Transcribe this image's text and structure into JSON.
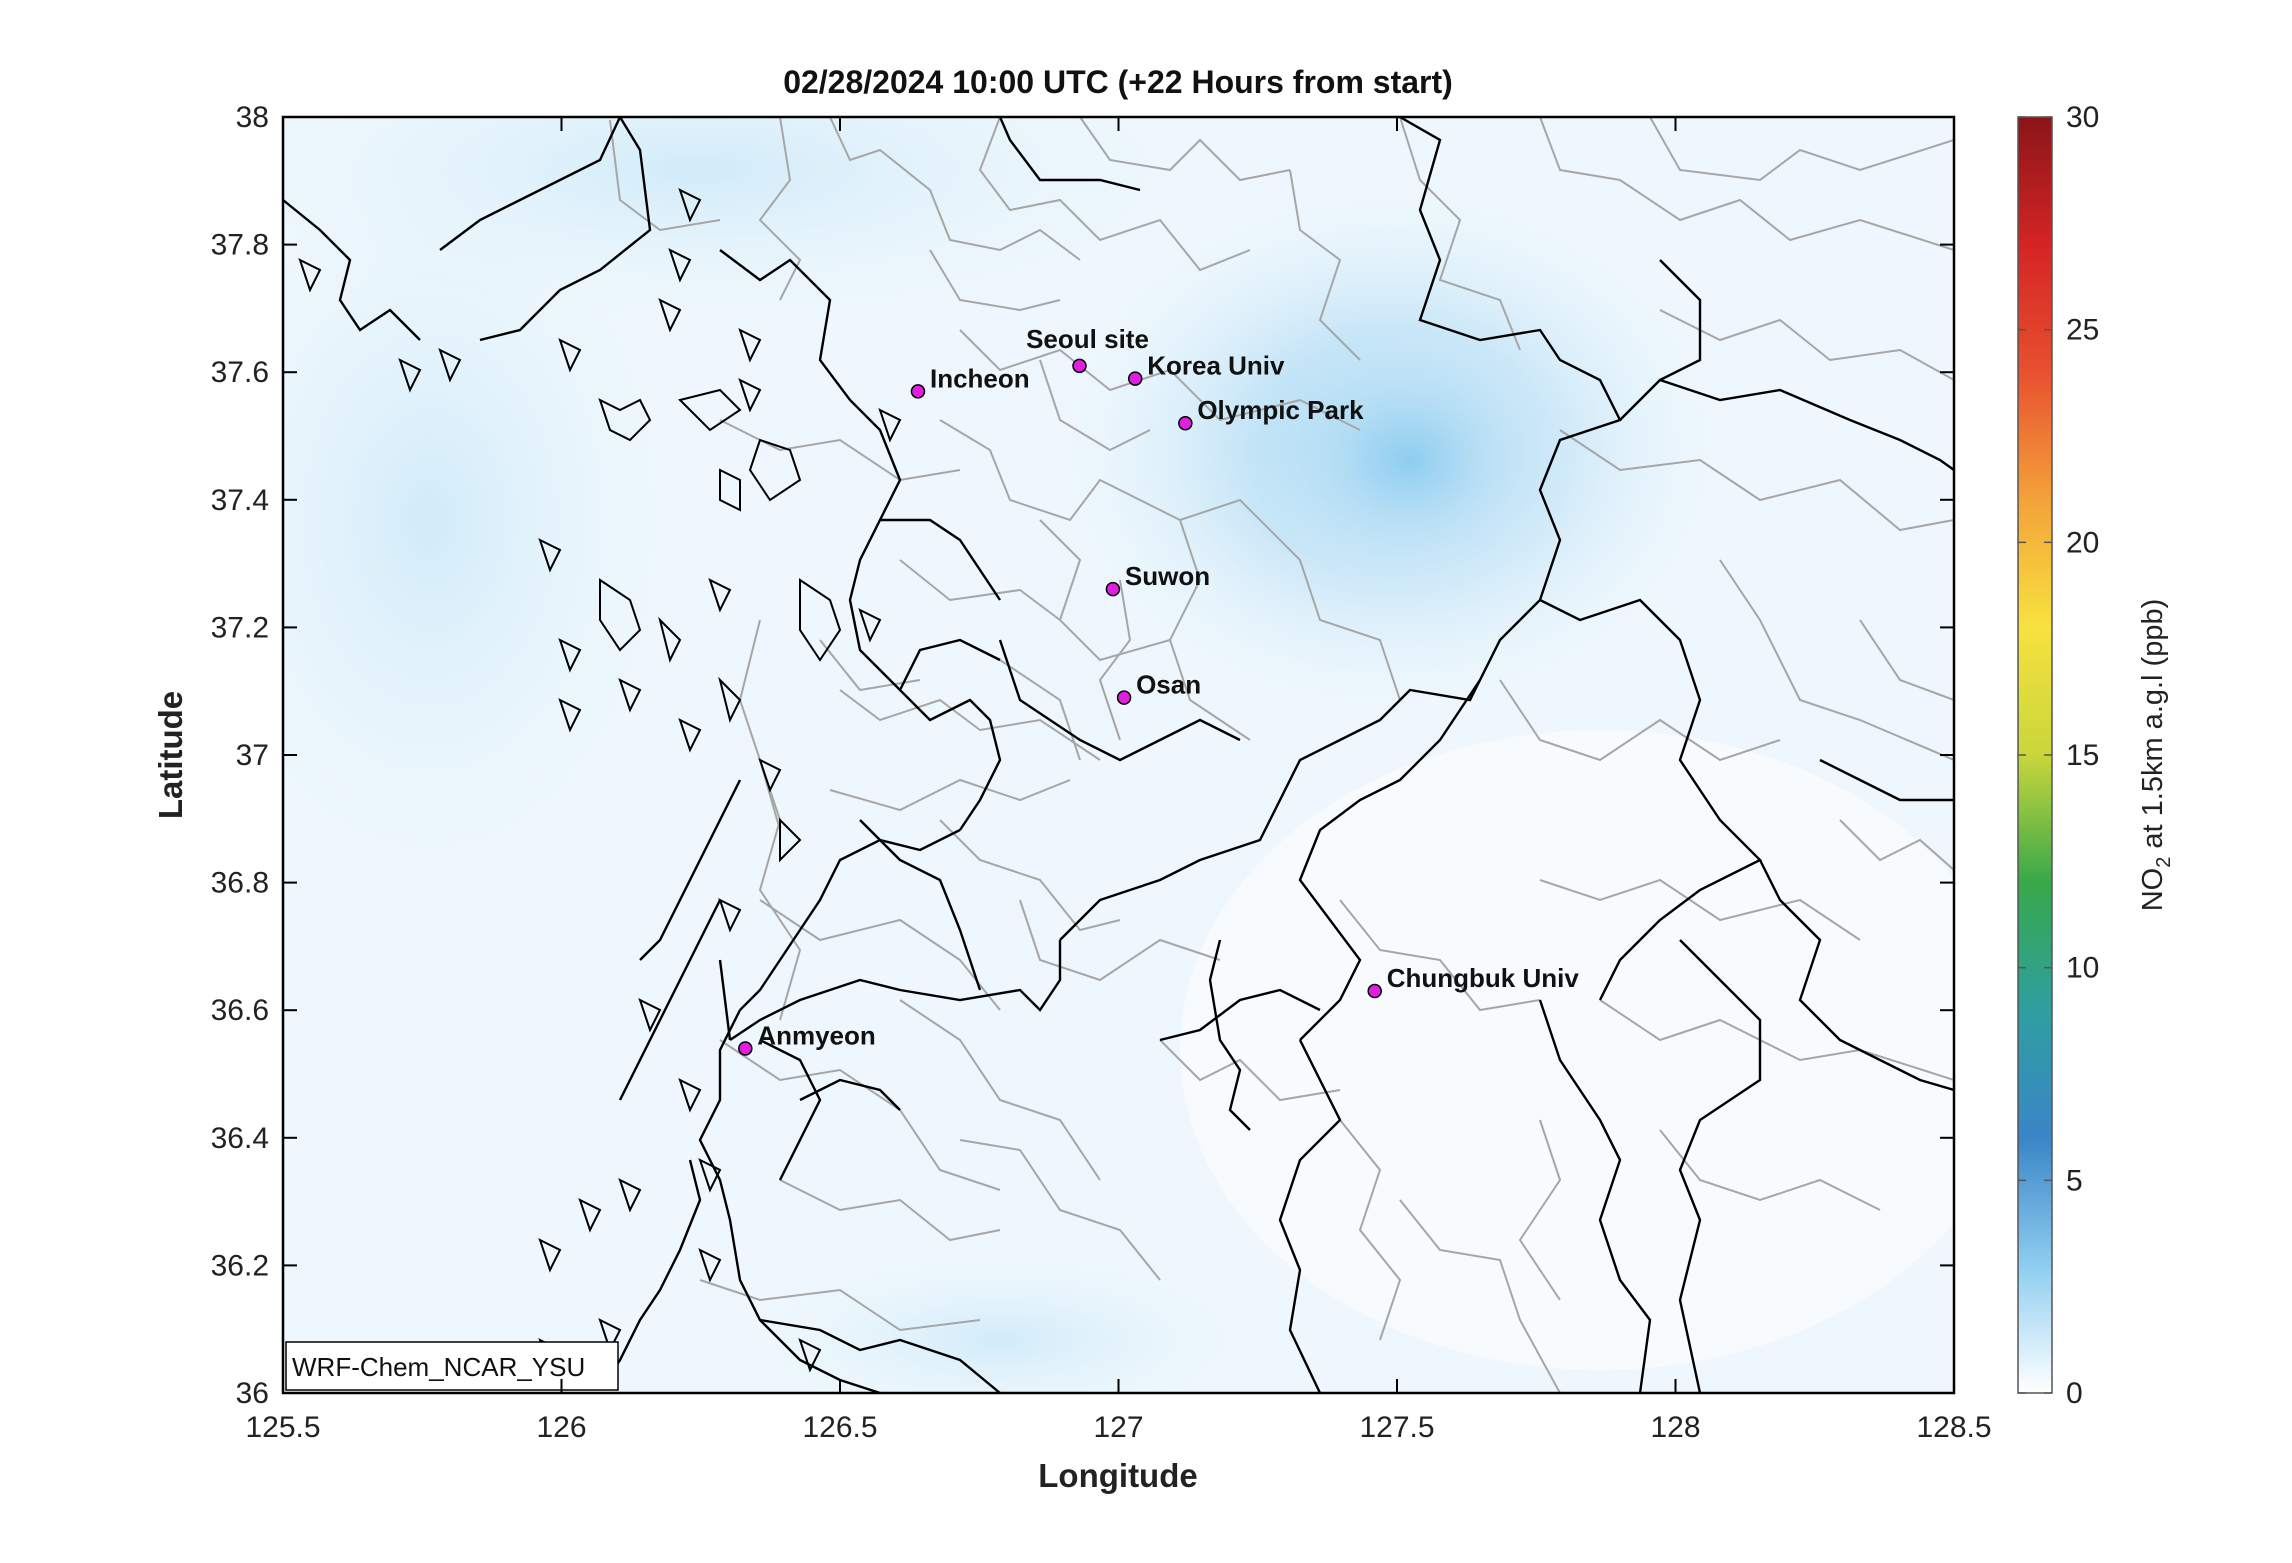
{
  "figure": {
    "title": "02/28/2024 10:00 UTC (+22 Hours from start)",
    "xlabel": "Longitude",
    "ylabel": "Latitude",
    "model_label": "WRF-Chem_NCAR_YSU"
  },
  "colorbar": {
    "label_prefix": "NO",
    "label_sub": "2",
    "label_suffix": " at 1.5km a.g.l (ppb)",
    "range": [
      0,
      30
    ],
    "ticks": [
      "0",
      "5",
      "10",
      "15",
      "20",
      "25",
      "30"
    ],
    "colors": [
      "#ffffff",
      "#8ecdf0",
      "#3a85c7",
      "#2e9fa0",
      "#38a84a",
      "#c9d63b",
      "#f7e23f",
      "#f4a23a",
      "#e8502f",
      "#d42424",
      "#8b1518"
    ]
  },
  "map": {
    "lon_range": [
      125.5,
      128.5
    ],
    "lat_range": [
      36,
      38
    ],
    "x_ticks": [
      "125.5",
      "126",
      "126.5",
      "127",
      "127.5",
      "128",
      "128.5"
    ],
    "y_ticks": [
      "36",
      "36.2",
      "36.4",
      "36.6",
      "36.8",
      "37",
      "37.2",
      "37.4",
      "37.6",
      "37.8",
      "38"
    ],
    "site_color": "#e01fe0",
    "sites": [
      {
        "name": "Seoul site",
        "lon": 126.93,
        "lat": 37.61,
        "label_pos": "above"
      },
      {
        "name": "Korea Univ",
        "lon": 127.03,
        "lat": 37.59,
        "label_pos": "right"
      },
      {
        "name": "Incheon",
        "lon": 126.64,
        "lat": 37.57,
        "label_pos": "right"
      },
      {
        "name": "Olympic Park",
        "lon": 127.12,
        "lat": 37.52,
        "label_pos": "right"
      },
      {
        "name": "Suwon",
        "lon": 126.99,
        "lat": 37.26,
        "label_pos": "right"
      },
      {
        "name": "Osan",
        "lon": 127.01,
        "lat": 37.09,
        "label_pos": "right"
      },
      {
        "name": "Chungbuk Univ",
        "lon": 127.46,
        "lat": 36.63,
        "label_pos": "right"
      },
      {
        "name": "Anmyeon",
        "lon": 126.33,
        "lat": 36.54,
        "label_pos": "right"
      }
    ]
  }
}
